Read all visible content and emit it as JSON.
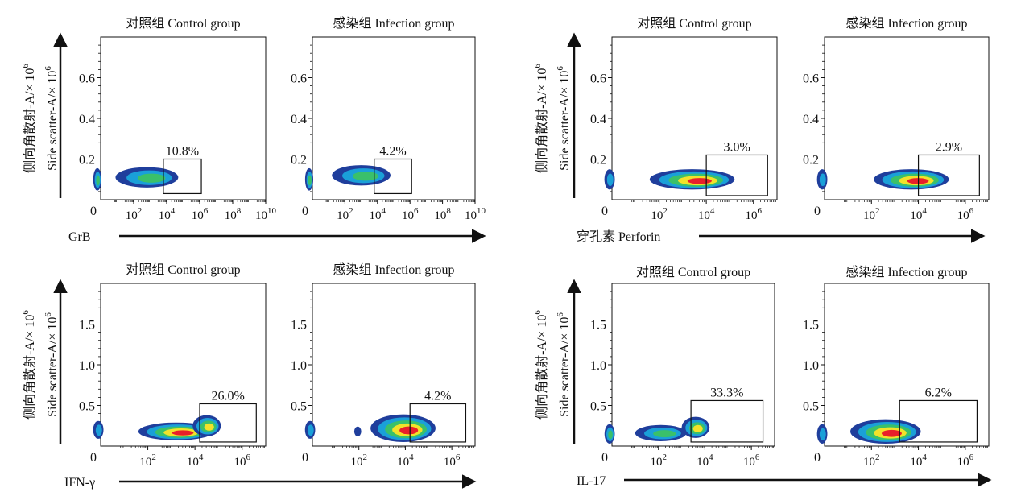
{
  "colors": {
    "density_low": "#1f3e9c",
    "density_mid": "#1aa0d8",
    "density_high_1": "#3ac06a",
    "density_high_2": "#f2e22a",
    "density_peak": "#e8202a",
    "axis": "#111111"
  },
  "chart_data": [
    {
      "id": "grb",
      "type": "scatter",
      "plot_style": "flow-cytometry-density",
      "ylabel_cn": "侧向角散射-A/× 10",
      "ylabel_en": "Side  scatter-A/× 10",
      "ylabel_exp": "6",
      "xlabel": "GrB",
      "yticks": [
        "0",
        "0.2",
        "0.4",
        "0.6"
      ],
      "ytick_values": [
        0,
        0.2,
        0.4,
        0.6
      ],
      "ylim": [
        0,
        0.8
      ],
      "xlim": [
        0,
        10
      ],
      "xticks_base": [
        "10",
        "10",
        "10",
        "10",
        "10"
      ],
      "xticks_exp": [
        "2",
        "4",
        "6",
        "8",
        "10"
      ],
      "xtick_positions": [
        2,
        4,
        6,
        8,
        10
      ],
      "x_zero": "0",
      "panels": [
        {
          "title": "对照组  Control  group",
          "gate_label": "10.8%",
          "gate": {
            "x0": 3.8,
            "x1": 6.1,
            "y0": 0.03,
            "y1": 0.2
          },
          "blobs": [
            {
              "x": -0.2,
              "y": 0.1,
              "rx": 0.25,
              "ry": 0.055,
              "level": 3
            },
            {
              "x": 2.8,
              "y": 0.11,
              "rx": 1.9,
              "ry": 0.05,
              "level": 3
            }
          ]
        },
        {
          "title": "感染组  Infection  group",
          "gate_label": "4.2%",
          "gate": {
            "x0": 3.8,
            "x1": 6.1,
            "y0": 0.03,
            "y1": 0.2
          },
          "blobs": [
            {
              "x": -0.2,
              "y": 0.1,
              "rx": 0.25,
              "ry": 0.055,
              "level": 3
            },
            {
              "x": 3.0,
              "y": 0.12,
              "rx": 1.8,
              "ry": 0.05,
              "level": 3
            }
          ]
        }
      ]
    },
    {
      "id": "perforin",
      "type": "scatter",
      "plot_style": "flow-cytometry-density",
      "ylabel_cn": "侧向角散射-A/× 10",
      "ylabel_en": "Side  scatter-A/× 10",
      "ylabel_exp": "6",
      "xlabel": "穿孔素  Perforin",
      "yticks": [
        "0",
        "0.2",
        "0.4",
        "0.6"
      ],
      "ytick_values": [
        0,
        0.2,
        0.4,
        0.6
      ],
      "ylim": [
        0,
        0.8
      ],
      "xlim": [
        0,
        7
      ],
      "xticks_base": [
        "10",
        "10",
        "10"
      ],
      "xticks_exp": [
        "2",
        "4",
        "6"
      ],
      "xtick_positions": [
        2,
        4,
        6
      ],
      "x_zero": "0",
      "panels": [
        {
          "title": "对照组  Control  group",
          "gate_label": "3.0%",
          "gate": {
            "x0": 4.0,
            "x1": 6.6,
            "y0": 0.02,
            "y1": 0.22
          },
          "blobs": [
            {
              "x": -0.1,
              "y": 0.1,
              "rx": 0.22,
              "ry": 0.05,
              "level": 2
            },
            {
              "x": 3.4,
              "y": 0.1,
              "rx": 1.8,
              "ry": 0.05,
              "level": 5
            }
          ]
        },
        {
          "title": "感染组  Infection  group",
          "gate_label": "2.9%",
          "gate": {
            "x0": 4.0,
            "x1": 6.6,
            "y0": 0.02,
            "y1": 0.22
          },
          "blobs": [
            {
              "x": -0.1,
              "y": 0.1,
              "rx": 0.22,
              "ry": 0.05,
              "level": 2
            },
            {
              "x": 3.7,
              "y": 0.1,
              "rx": 1.6,
              "ry": 0.05,
              "level": 5
            }
          ]
        }
      ]
    },
    {
      "id": "ifng",
      "type": "scatter",
      "plot_style": "flow-cytometry-density",
      "ylabel_cn": "侧向角散射-A/× 10",
      "ylabel_en": "Side  scatter-A/× 10",
      "ylabel_exp": "6",
      "xlabel": "IFN-γ",
      "yticks": [
        "0",
        "0.5",
        "1.0",
        "1.5"
      ],
      "ytick_values": [
        0,
        0.5,
        1.0,
        1.5
      ],
      "ylim": [
        0,
        2.0
      ],
      "xlim": [
        0,
        7
      ],
      "xticks_base": [
        "10",
        "10",
        "10"
      ],
      "xticks_exp": [
        "2",
        "4",
        "6"
      ],
      "xtick_positions": [
        2,
        4,
        6
      ],
      "x_zero": "0",
      "panels": [
        {
          "title": "对照组  Control  group",
          "gate_label": "26.0%",
          "gate": {
            "x0": 4.2,
            "x1": 6.6,
            "y0": 0.05,
            "y1": 0.52
          },
          "blobs": [
            {
              "x": -0.1,
              "y": 0.2,
              "rx": 0.22,
              "ry": 0.11,
              "level": 2
            },
            {
              "x": 3.2,
              "y": 0.18,
              "rx": 1.6,
              "ry": 0.11,
              "level": 5
            },
            {
              "x": 4.5,
              "y": 0.25,
              "rx": 0.6,
              "ry": 0.13,
              "level": 4
            }
          ]
        },
        {
          "title": "感染组  Infection  group",
          "gate_label": "4.2%",
          "gate": {
            "x0": 4.2,
            "x1": 6.6,
            "y0": 0.05,
            "y1": 0.52
          },
          "blobs": [
            {
              "x": -0.1,
              "y": 0.2,
              "rx": 0.22,
              "ry": 0.11,
              "level": 2
            },
            {
              "x": 1.95,
              "y": 0.18,
              "rx": 0.15,
              "ry": 0.06,
              "level": 1
            },
            {
              "x": 3.9,
              "y": 0.22,
              "rx": 1.4,
              "ry": 0.17,
              "level": 5
            }
          ]
        }
      ]
    },
    {
      "id": "il17",
      "type": "scatter",
      "plot_style": "flow-cytometry-density",
      "ylabel_cn": "侧向角散射-A/× 10",
      "ylabel_en": "Side  scatter-A/× 10",
      "ylabel_exp": "6",
      "xlabel": "IL-17",
      "yticks": [
        "0",
        "0.5",
        "1.0",
        "1.5"
      ],
      "ytick_values": [
        0,
        0.5,
        1.0,
        1.5
      ],
      "ylim": [
        0,
        2.0
      ],
      "xlim": [
        0,
        7
      ],
      "xticks_base": [
        "10",
        "10",
        "10"
      ],
      "xticks_exp": [
        "2",
        "4",
        "6"
      ],
      "xtick_positions": [
        2,
        4,
        6
      ],
      "x_zero": "0",
      "panels": [
        {
          "title": "对照组  Control  group",
          "gate_label": "33.3%",
          "gate": {
            "x0": 3.4,
            "x1": 6.5,
            "y0": 0.05,
            "y1": 0.56
          },
          "blobs": [
            {
              "x": -0.1,
              "y": 0.15,
              "rx": 0.22,
              "ry": 0.12,
              "level": 3
            },
            {
              "x": 2.1,
              "y": 0.16,
              "rx": 1.1,
              "ry": 0.1,
              "level": 3
            },
            {
              "x": 3.6,
              "y": 0.23,
              "rx": 0.6,
              "ry": 0.13,
              "level": 4
            }
          ]
        },
        {
          "title": "感染组  Infection  group",
          "gate_label": "6.2%",
          "gate": {
            "x0": 3.2,
            "x1": 6.5,
            "y0": 0.05,
            "y1": 0.56
          },
          "blobs": [
            {
              "x": -0.1,
              "y": 0.15,
              "rx": 0.22,
              "ry": 0.12,
              "level": 2
            },
            {
              "x": 2.6,
              "y": 0.18,
              "rx": 1.5,
              "ry": 0.15,
              "level": 5
            }
          ]
        }
      ]
    }
  ]
}
